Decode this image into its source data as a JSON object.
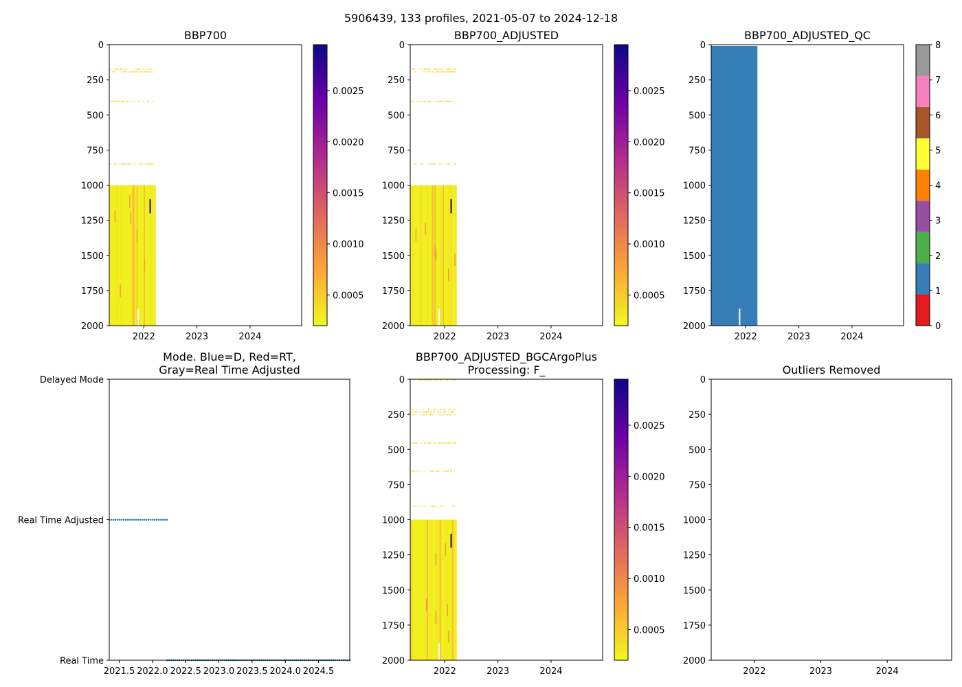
{
  "suptitle": "5906439, 133 profiles, 2021-05-07 to 2024-12-18",
  "colors": {
    "cbar_stops": [
      "#0d0887",
      "#6a00a8",
      "#b12a90",
      "#e16462",
      "#fca636",
      "#f0f921"
    ],
    "qc": [
      "#e41a1c",
      "#377eb8",
      "#4daf4a",
      "#984ea3",
      "#ff7f00",
      "#ffff33",
      "#a65628",
      "#f781bf",
      "#999999"
    ],
    "data_yellow": "#f0f01e",
    "mode_blue": "#1f77b4"
  },
  "chart_data": [
    {
      "id": "p1",
      "type": "heatmap",
      "title": "BBP700",
      "xlim": [
        2021.35,
        2024.97
      ],
      "ylim": [
        2000,
        0
      ],
      "xticks": [
        2022,
        2023,
        2024
      ],
      "xtick_labels": [
        "2022",
        "2023",
        "2024"
      ],
      "yticks": [
        0,
        250,
        500,
        750,
        1000,
        1250,
        1500,
        1750,
        2000
      ],
      "ytick_labels": [
        "0",
        "250",
        "500",
        "750",
        "1000",
        "1250",
        "1500",
        "1750",
        "2000"
      ],
      "data_range_x": [
        2021.35,
        2022.22
      ],
      "dense_depth_from": 1000,
      "shallow_bands": [
        [
          170,
          200
        ],
        [
          400,
          405
        ],
        [
          845,
          850
        ]
      ],
      "colorbar": {
        "vmin": 0.0002,
        "vmax": 0.00295,
        "ticks": [
          0.0005,
          0.001,
          0.0015,
          0.002,
          0.0025
        ],
        "tick_labels": [
          "0.0005",
          "0.0010",
          "0.0015",
          "0.0020",
          "0.0025"
        ]
      }
    },
    {
      "id": "p2",
      "type": "heatmap",
      "title": "BBP700_ADJUSTED",
      "xlim": [
        2021.35,
        2024.97
      ],
      "ylim": [
        2000,
        0
      ],
      "xticks": [
        2022,
        2023,
        2024
      ],
      "xtick_labels": [
        "2022",
        "2023",
        "2024"
      ],
      "yticks": [
        0,
        250,
        500,
        750,
        1000,
        1250,
        1500,
        1750,
        2000
      ],
      "ytick_labels": [
        "0",
        "250",
        "500",
        "750",
        "1000",
        "1250",
        "1500",
        "1750",
        "2000"
      ],
      "data_range_x": [
        2021.35,
        2022.22
      ],
      "dense_depth_from": 1000,
      "shallow_bands": [
        [
          170,
          200
        ],
        [
          400,
          405
        ],
        [
          845,
          850
        ]
      ],
      "colorbar": {
        "vmin": 0.0002,
        "vmax": 0.00295,
        "ticks": [
          0.0005,
          0.001,
          0.0015,
          0.002,
          0.0025
        ],
        "tick_labels": [
          "0.0005",
          "0.0010",
          "0.0015",
          "0.0020",
          "0.0025"
        ]
      }
    },
    {
      "id": "p3",
      "type": "heatmap",
      "title": "BBP700_ADJUSTED_QC",
      "xlim": [
        2021.35,
        2024.97
      ],
      "ylim": [
        2000,
        0
      ],
      "xticks": [
        2022,
        2023,
        2024
      ],
      "xtick_labels": [
        "2022",
        "2023",
        "2024"
      ],
      "yticks": [
        0,
        250,
        500,
        750,
        1000,
        1250,
        1500,
        1750,
        2000
      ],
      "ytick_labels": [
        "0",
        "250",
        "500",
        "750",
        "1000",
        "1250",
        "1500",
        "1750",
        "2000"
      ],
      "qc_value": 1,
      "data_range_x": [
        2021.35,
        2022.22
      ],
      "colorbar": {
        "vmin": 0,
        "vmax": 8,
        "ticks": [
          0,
          1,
          2,
          3,
          4,
          5,
          6,
          7,
          8
        ],
        "tick_labels": [
          "0",
          "1",
          "2",
          "3",
          "4",
          "5",
          "6",
          "7",
          "8"
        ]
      }
    },
    {
      "id": "p4",
      "type": "scatter",
      "title": "Mode. Blue=D, Red=RT,\nGray=Real Time Adjusted",
      "title_lines": [
        "Mode. Blue=D, Red=RT,",
        "Gray=Real Time Adjusted"
      ],
      "xlim": [
        2021.35,
        2024.97
      ],
      "ylim": [
        0,
        2
      ],
      "xticks": [
        2021.5,
        2022.0,
        2022.5,
        2023.0,
        2023.5,
        2024.0,
        2024.5
      ],
      "xtick_labels": [
        "2021.5",
        "2022.0",
        "2022.5",
        "2023.0",
        "2023.5",
        "2024.0",
        "2024.5"
      ],
      "ytick_labels": [
        "Real Time",
        "Real Time Adjusted",
        "Delayed Mode"
      ],
      "series": [
        {
          "name": "Real Time Adjusted",
          "y": 1,
          "x_range": [
            2021.35,
            2022.22
          ]
        },
        {
          "name": "Real Time",
          "y": 0,
          "x_range": [
            2022.22,
            2024.97
          ]
        }
      ]
    },
    {
      "id": "p5",
      "type": "heatmap",
      "title": "BBP700_ADJUSTED_BGCArgoPlus\nProcessing: F_",
      "title_lines": [
        "BBP700_ADJUSTED_BGCArgoPlus",
        "Processing: F_"
      ],
      "xlim": [
        2021.35,
        2024.97
      ],
      "ylim": [
        2000,
        0
      ],
      "xticks": [
        2022,
        2023,
        2024
      ],
      "xtick_labels": [
        "2022",
        "2023",
        "2024"
      ],
      "yticks": [
        0,
        250,
        500,
        750,
        1000,
        1250,
        1500,
        1750,
        2000
      ],
      "ytick_labels": [
        "0",
        "250",
        "500",
        "750",
        "1000",
        "1250",
        "1500",
        "1750",
        "2000"
      ],
      "data_range_x": [
        2021.35,
        2022.22
      ],
      "dense_depth_from": 1000,
      "shallow_bands": [
        [
          0,
          5
        ],
        [
          210,
          260
        ],
        [
          450,
          455
        ],
        [
          650,
          655
        ],
        [
          900,
          905
        ]
      ],
      "colorbar": {
        "vmin": 0.0002,
        "vmax": 0.00295,
        "ticks": [
          0.0005,
          0.001,
          0.0015,
          0.002,
          0.0025
        ],
        "tick_labels": [
          "0.0005",
          "0.0010",
          "0.0015",
          "0.0020",
          "0.0025"
        ]
      }
    },
    {
      "id": "p6",
      "type": "heatmap",
      "title": "Outliers Removed",
      "xlim": [
        2021.35,
        2024.97
      ],
      "ylim": [
        2000,
        0
      ],
      "xticks": [
        2022,
        2023,
        2024
      ],
      "xtick_labels": [
        "2022",
        "2023",
        "2024"
      ],
      "yticks": [
        0,
        250,
        500,
        750,
        1000,
        1250,
        1500,
        1750,
        2000
      ],
      "ytick_labels": [
        "0",
        "250",
        "500",
        "750",
        "1000",
        "1250",
        "1500",
        "1750",
        "2000"
      ]
    }
  ]
}
